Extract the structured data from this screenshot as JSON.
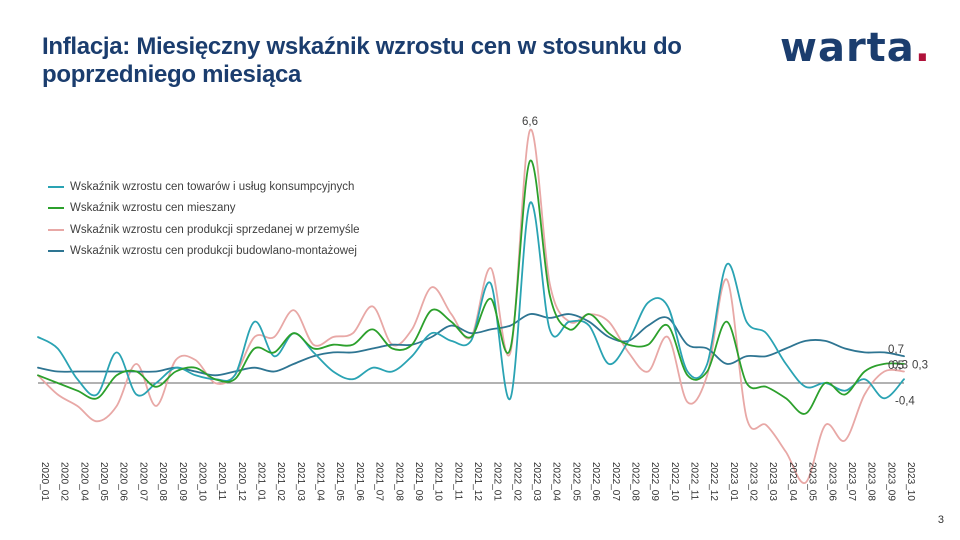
{
  "slide": {
    "title": "Inflacja: Miesięczny wskaźnik wzrostu cen w stosunku do poprzedniego miesiąca",
    "logo_text": "warta",
    "logo_dot": ".",
    "page_number": "3",
    "brand_color": "#1b3d6e",
    "logo_dot_color": "#b0123a"
  },
  "chart_data": {
    "type": "line",
    "title": "",
    "xlabel": "",
    "ylabel": "",
    "ylim": [
      -3,
      9
    ],
    "grid": false,
    "legend_position": "top-left",
    "categories": [
      "2020_01",
      "2020_02",
      "2020_04",
      "2020_05",
      "2020_06",
      "2020_07",
      "2020_08",
      "2020_09",
      "2020_10",
      "2020_11",
      "2020_12",
      "2021_01",
      "2021_02",
      "2021_03",
      "2021_04",
      "2021_05",
      "2021_06",
      "2021_07",
      "2021_08",
      "2021_09",
      "2021_10",
      "2021_11",
      "2021_12",
      "2022_01",
      "2022_02",
      "2022_03",
      "2022_04",
      "2022_05",
      "2022_06",
      "2022_07",
      "2022_08",
      "2022_09",
      "2022_10",
      "2022_11",
      "2022_12",
      "2023_01",
      "2023_02",
      "2023_03",
      "2023_04",
      "2023_05",
      "2023_06",
      "2023_07",
      "2023_08",
      "2023_09",
      "2023_10"
    ],
    "series": [
      {
        "name": "Wskaźnik wzrostu cen towarów i usług konsumpcyjnych",
        "color": "#2aa3b3",
        "values": [
          1.2,
          0.9,
          0.1,
          -0.3,
          0.8,
          -0.3,
          0,
          0.4,
          0.2,
          0.1,
          0.2,
          1.6,
          0.7,
          1.3,
          0.8,
          0.3,
          0.1,
          0.4,
          0.3,
          0.7,
          1.3,
          1.1,
          1.1,
          2.6,
          -0.4,
          4.7,
          1.4,
          1.6,
          1.5,
          0.5,
          1.1,
          2.1,
          2,
          0.3,
          0.5,
          3.1,
          1.6,
          1.3,
          0.5,
          -0.1,
          0,
          -0.2,
          0.1,
          -0.4,
          0.1
        ]
      },
      {
        "name": "Wskaźnik wzrostu cen mieszany",
        "color": "#2ca02c",
        "values": [
          0.2,
          0,
          -0.2,
          -0.4,
          0.2,
          0.3,
          -0.1,
          0.3,
          0.4,
          0.1,
          0.1,
          0.9,
          0.8,
          1.3,
          0.9,
          1,
          1,
          1.4,
          0.9,
          1,
          1.9,
          1.6,
          1.2,
          2.2,
          0.9,
          5.8,
          2.3,
          1.4,
          1.8,
          1.3,
          1,
          1,
          1.5,
          0.2,
          0.3,
          1.6,
          0,
          -0.1,
          -0.4,
          -0.8,
          0,
          -0.3,
          0.3,
          0.5,
          0.5
        ]
      },
      {
        "name": "Wskaźnik wzrostu cen produkcji sprzedanej w przemyśle",
        "color": "#e8a8a6",
        "values": [
          0.2,
          -0.3,
          -0.6,
          -1,
          -0.6,
          0.5,
          -0.6,
          0.6,
          0.6,
          0,
          0.2,
          1.2,
          1.2,
          1.9,
          1,
          1.2,
          1.3,
          2,
          1,
          1.4,
          2.5,
          1.8,
          1.2,
          3,
          0.8,
          6.6,
          2.6,
          1.6,
          1.8,
          1.6,
          0.8,
          0.3,
          1.2,
          -0.5,
          0.2,
          2.7,
          -0.9,
          -1.1,
          -1.8,
          -2.6,
          -1.1,
          -1.5,
          -0.3,
          0.3,
          0.3
        ]
      },
      {
        "name": "Wskaźnik wzrostu cen produkcji budowlano-montażowej",
        "color": "#2e7592",
        "values": [
          0.4,
          0.3,
          0.3,
          0.3,
          0.3,
          0.3,
          0.3,
          0.4,
          0.3,
          0.2,
          0.3,
          0.4,
          0.3,
          0.5,
          0.7,
          0.8,
          0.8,
          0.9,
          1,
          1,
          1.2,
          1.5,
          1.3,
          1.4,
          1.5,
          1.8,
          1.7,
          1.8,
          1.6,
          1.2,
          1.1,
          1.5,
          1.7,
          1,
          0.9,
          0.5,
          0.7,
          0.7,
          0.9,
          1.1,
          1.1,
          0.9,
          0.8,
          0.8,
          0.7
        ]
      }
    ],
    "annotations": [
      "6,6",
      "0,7",
      "0,5",
      "0,3",
      "0,3",
      "-0,4"
    ]
  }
}
